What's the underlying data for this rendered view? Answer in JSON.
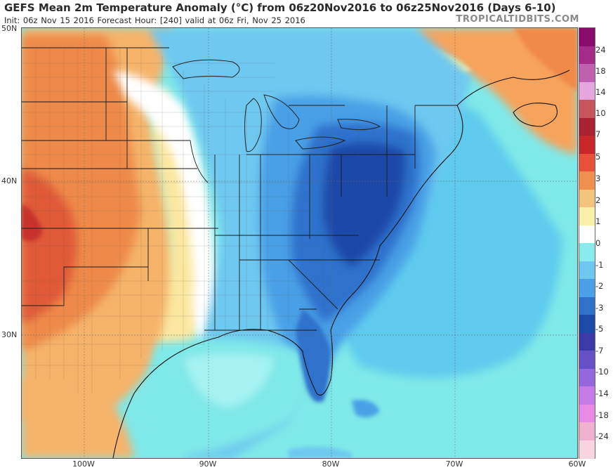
{
  "header": {
    "title": "GEFS Mean 2m Temperature Anomaly (°C) from 06z20Nov2016 to 06z25Nov2016 (Days 6-10)",
    "subtitle": "Init: 06z Nov 15 2016   Forecast Hour: [240]   valid at 06z Fri, Nov 25 2016",
    "brand": "TROPICALTIDBITS.COM"
  },
  "map": {
    "latitude_labels": [
      "50N",
      "40N",
      "30N"
    ],
    "longitude_labels": [
      "100W",
      "90W",
      "80W",
      "70W",
      "60W"
    ],
    "regions": {
      "western_plains": "warm anomaly (+1 to +4 °C)",
      "eastern_us": "cold anomaly (-1 to -5 °C)"
    }
  },
  "legend": {
    "ticks": [
      "24",
      "18",
      "14",
      "10",
      "7",
      "5",
      "3",
      "2",
      "1",
      "0",
      "-1",
      "-2",
      "-3",
      "-5",
      "-7",
      "-10",
      "-14",
      "-18",
      "-24"
    ],
    "colors": [
      "#8b0a6e",
      "#a52a8a",
      "#c060b0",
      "#e4a6dc",
      "#c8565c",
      "#a82232",
      "#c8282a",
      "#e8503a",
      "#f0904e",
      "#f5c47c",
      "#fbf0a8",
      "#ffffff",
      "#88ecec",
      "#6ec8f0",
      "#4aa0e6",
      "#2e72cc",
      "#1c4aa8",
      "#3c3aa8",
      "#6650c8",
      "#9468dc",
      "#c87ae8",
      "#e88ce8",
      "#f0b0d0",
      "#f8d4e0"
    ]
  }
}
